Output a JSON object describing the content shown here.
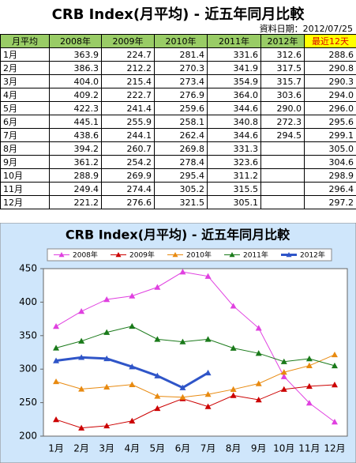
{
  "title": "CRB Index(月平均) - 近五年同月比較",
  "date": "資料日期：2012/07/25",
  "table": {
    "header": [
      "月平均",
      "2008年",
      "2009年",
      "2010年",
      "2011年",
      "2012年",
      "最近12天"
    ],
    "rows": [
      [
        "1月",
        "363.9",
        "224.7",
        "281.4",
        "331.6",
        "312.6",
        "288.6"
      ],
      [
        "2月",
        "386.3",
        "212.2",
        "270.3",
        "341.9",
        "317.5",
        "290.8"
      ],
      [
        "3月",
        "404.0",
        "215.4",
        "273.4",
        "354.9",
        "315.7",
        "290.3"
      ],
      [
        "4月",
        "409.2",
        "222.7",
        "276.9",
        "364.0",
        "303.6",
        "294.0"
      ],
      [
        "5月",
        "422.3",
        "241.4",
        "259.6",
        "344.6",
        "290.0",
        "296.0"
      ],
      [
        "6月",
        "445.1",
        "255.9",
        "258.1",
        "340.8",
        "272.3",
        "295.6"
      ],
      [
        "7月",
        "438.6",
        "244.1",
        "262.4",
        "344.6",
        "294.5",
        "299.1"
      ],
      [
        "8月",
        "394.2",
        "260.7",
        "269.8",
        "331.3",
        null,
        "305.0"
      ],
      [
        "9月",
        "361.2",
        "254.2",
        "278.4",
        "323.6",
        null,
        "304.6"
      ],
      [
        "10月",
        "288.9",
        "269.9",
        "295.4",
        "311.2",
        null,
        "298.9"
      ],
      [
        "11月",
        "249.4",
        "274.4",
        "305.2",
        "315.5",
        null,
        "296.4"
      ],
      [
        "12月",
        "221.2",
        "276.6",
        "321.5",
        "305.1",
        null,
        "297.2"
      ]
    ]
  },
  "chart_data": {
    "type": "line",
    "title": "CRB Index(月平均) - 近五年同月比較",
    "categories": [
      "1月",
      "2月",
      "3月",
      "4月",
      "5月",
      "6月",
      "7月",
      "8月",
      "9月",
      "10月",
      "11月",
      "12月"
    ],
    "series": [
      {
        "name": "2008年",
        "color": "#e040e0",
        "values": [
          363.9,
          386.3,
          404.0,
          409.2,
          422.3,
          445.1,
          438.6,
          394.2,
          361.2,
          288.9,
          249.4,
          221.2
        ]
      },
      {
        "name": "2009年",
        "color": "#cc0000",
        "values": [
          224.7,
          212.2,
          215.4,
          222.7,
          241.4,
          255.9,
          244.1,
          260.7,
          254.2,
          269.9,
          274.4,
          276.6
        ]
      },
      {
        "name": "2010年",
        "color": "#e88a10",
        "values": [
          281.4,
          270.3,
          273.4,
          276.9,
          259.6,
          258.1,
          262.4,
          269.8,
          278.4,
          295.4,
          305.2,
          321.5
        ]
      },
      {
        "name": "2011年",
        "color": "#1a7a1a",
        "values": [
          331.6,
          341.9,
          354.9,
          364.0,
          344.6,
          340.8,
          344.6,
          331.3,
          323.6,
          311.2,
          315.5,
          305.1
        ]
      },
      {
        "name": "2012年",
        "color": "#2f55c8",
        "values": [
          312.6,
          317.5,
          315.7,
          303.6,
          290.0,
          272.3,
          294.5,
          null,
          null,
          null,
          null,
          null
        ]
      }
    ],
    "ylim": [
      200,
      450
    ],
    "yticks": [
      200,
      250,
      300,
      350,
      400,
      450
    ],
    "grid": false,
    "legend": "top"
  }
}
